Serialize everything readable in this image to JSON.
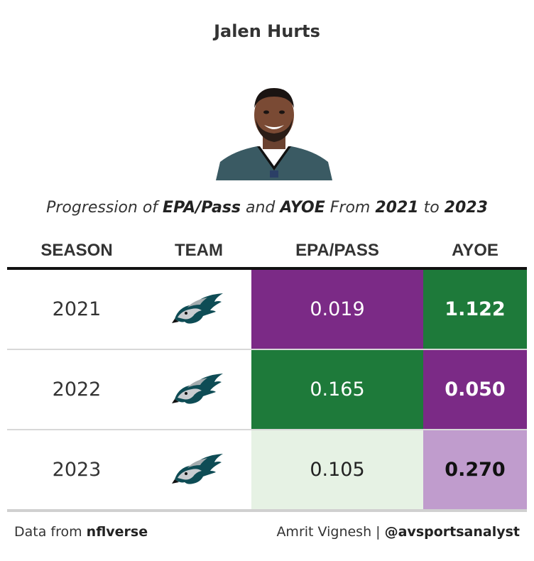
{
  "title": "Jalen Hurts",
  "subtitle": {
    "p1": "Progression of ",
    "b1": "EPA/Pass",
    "p2": " and ",
    "b2": "AYOE",
    "p3": " From ",
    "b3": "2021",
    "p4": " to ",
    "b4": "2023"
  },
  "columns": {
    "season": "SEASON",
    "team": "TEAM",
    "epa": "EPA/PASS",
    "ayoe": "AYOE"
  },
  "rows": [
    {
      "season": "2021",
      "team_icon": "eagles-logo-icon",
      "epa": "0.019",
      "ayoe": "1.122",
      "epa_bg": "#7b2a86",
      "epa_fg": "#ffffff",
      "ayoe_bg": "#1e7a3a",
      "ayoe_fg": "#ffffff"
    },
    {
      "season": "2022",
      "team_icon": "eagles-logo-icon",
      "epa": "0.165",
      "ayoe": "0.050",
      "epa_bg": "#1e7a3a",
      "epa_fg": "#ffffff",
      "ayoe_bg": "#7b2a86",
      "ayoe_fg": "#ffffff"
    },
    {
      "season": "2023",
      "team_icon": "eagles-logo-icon",
      "epa": "0.105",
      "ayoe": "0.270",
      "epa_bg": "#e6f2e4",
      "epa_fg": "#222222",
      "ayoe_bg": "#c09ccd",
      "ayoe_fg": "#111111"
    }
  ],
  "footer": {
    "left_prefix": "Data from ",
    "left_source": "nflverse",
    "right_prefix": "Amrit Vignesh | ",
    "right_handle": "@avsportsanalyst"
  }
}
